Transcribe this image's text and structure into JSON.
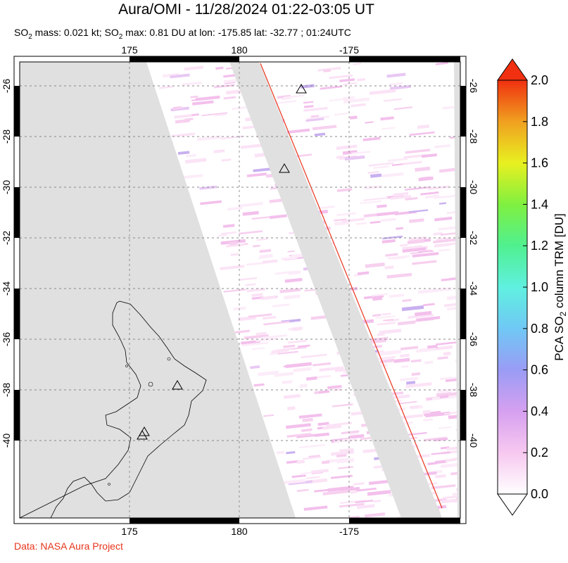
{
  "title": "Aura/OMI - 11/28/2024 01:22-03:05 UT",
  "subtitle": {
    "prefix": "SO",
    "sub1": "2",
    "mid": " mass: 0.021 kt; SO",
    "sub2": "2",
    "rest": " max: 0.81 DU at lon: -175.85 lat: -32.77 ; 01:24UTC"
  },
  "credit": "Data: NASA Aura Project",
  "map": {
    "lon_ticks_top": [
      "175",
      "180",
      "-175"
    ],
    "lon_ticks_bottom": [
      "175",
      "180",
      "-175"
    ],
    "lat_ticks_left": [
      "-26",
      "-28",
      "-30",
      "-32",
      "-34",
      "-36",
      "-38",
      "-40"
    ],
    "lat_ticks_right": [
      "-26",
      "-28",
      "-30",
      "-32",
      "-34",
      "-36",
      "-38",
      "-40"
    ],
    "volcano_markers": [
      {
        "lon": -176.9,
        "lat": -26.0
      },
      {
        "lon": -177.7,
        "lat": -29.3
      },
      {
        "lon": 177.2,
        "lat": -37.5
      },
      {
        "lon": 175.65,
        "lat": -39.15
      },
      {
        "lon": 175.6,
        "lat": -39.3
      }
    ],
    "colors": {
      "missing_swath": "#e0e0e0",
      "land": "#e0e0e0",
      "coast": "#000000",
      "dateline_track": "#e8341c",
      "grid": "#888888"
    }
  },
  "colorbar": {
    "label_pre": "PCA SO",
    "label_sub": "2",
    "label_post": " column TRM [DU]",
    "ticks": [
      "0.0",
      "0.2",
      "0.4",
      "0.6",
      "0.8",
      "1.0",
      "1.2",
      "1.4",
      "1.6",
      "1.8",
      "2.0"
    ],
    "min": 0.0,
    "max": 2.0,
    "colors": [
      "#ffffff",
      "#f7c8f0",
      "#d6a0f0",
      "#9a9cf5",
      "#70c8f5",
      "#60f0e0",
      "#50f090",
      "#80f040",
      "#e8f020",
      "#f0a020",
      "#f03010"
    ]
  }
}
